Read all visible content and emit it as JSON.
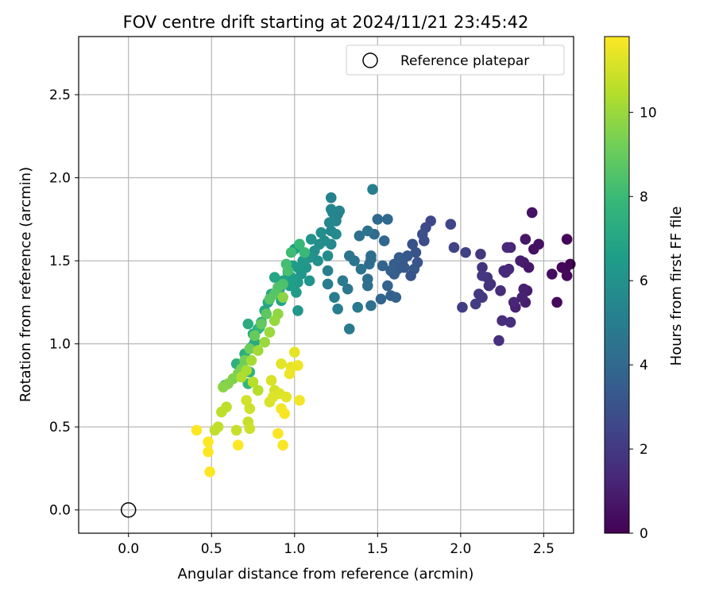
{
  "chart_data": {
    "type": "scatter",
    "title": "FOV centre drift starting at 2024/11/21 23:45:42",
    "xlabel": "Angular distance from reference (arcmin)",
    "ylabel": "Rotation from reference (arcmin)",
    "xlim": [
      -0.3,
      2.68
    ],
    "ylim": [
      -0.14,
      2.85
    ],
    "xticks": [
      "0.0",
      "0.5",
      "1.0",
      "1.5",
      "2.0",
      "2.5"
    ],
    "xtick_values": [
      0,
      0.5,
      1.0,
      1.5,
      2.0,
      2.5
    ],
    "yticks": [
      "0.0",
      "0.5",
      "1.0",
      "1.5",
      "2.0",
      "2.5"
    ],
    "ytick_values": [
      0,
      0.5,
      1.0,
      1.5,
      2.0,
      2.5
    ],
    "grid": true,
    "legend": {
      "placement": "top-right",
      "label": "Reference platepar"
    },
    "reference_point": {
      "x": 0,
      "y": 0,
      "marker": "open-circle",
      "color": "#000000"
    },
    "colorbar": {
      "label": "Hours from first FF file",
      "range": [
        0,
        11.8
      ],
      "ticks": [
        "0",
        "2",
        "4",
        "6",
        "8",
        "10"
      ],
      "tick_values": [
        0,
        2,
        4,
        6,
        8,
        10
      ],
      "colormap": "viridis",
      "stops": [
        "#440154",
        "#482878",
        "#3e4989",
        "#31688e",
        "#26828e",
        "#1f9e89",
        "#35b779",
        "#6ece58",
        "#b5de2b",
        "#fde725"
      ]
    },
    "series": [
      {
        "color_by": "hours",
        "points": [
          [
            2.64,
            1.63,
            0.1
          ],
          [
            2.66,
            1.48,
            0.1
          ],
          [
            2.63,
            1.45,
            0.2
          ],
          [
            2.61,
            1.46,
            0.2
          ],
          [
            2.64,
            1.41,
            0.2
          ],
          [
            2.58,
            1.25,
            0.3
          ],
          [
            2.55,
            1.42,
            0.4
          ],
          [
            2.47,
            1.6,
            0.5
          ],
          [
            2.44,
            1.57,
            0.5
          ],
          [
            2.43,
            1.79,
            0.6
          ],
          [
            2.39,
            1.63,
            0.7
          ],
          [
            2.41,
            1.46,
            0.7
          ],
          [
            2.38,
            1.49,
            0.8
          ],
          [
            2.36,
            1.5,
            0.9
          ],
          [
            2.4,
            1.32,
            0.9
          ],
          [
            2.38,
            1.33,
            1.0
          ],
          [
            2.39,
            1.25,
            1.0
          ],
          [
            2.37,
            1.28,
            1.1
          ],
          [
            2.33,
            1.22,
            1.1
          ],
          [
            2.32,
            1.25,
            1.2
          ],
          [
            2.3,
            1.58,
            1.2
          ],
          [
            2.28,
            1.58,
            1.3
          ],
          [
            2.29,
            1.45,
            1.3
          ],
          [
            2.27,
            1.43,
            1.4
          ],
          [
            2.26,
            1.44,
            1.4
          ],
          [
            2.24,
            1.32,
            1.5
          ],
          [
            2.25,
            1.14,
            1.5
          ],
          [
            2.23,
            1.02,
            1.6
          ],
          [
            2.3,
            1.13,
            1.6
          ],
          [
            2.18,
            1.36,
            1.7
          ],
          [
            2.17,
            1.35,
            1.7
          ],
          [
            2.16,
            1.4,
            1.8
          ],
          [
            2.13,
            1.46,
            1.8
          ],
          [
            2.12,
            1.54,
            1.9
          ],
          [
            2.13,
            1.41,
            1.9
          ],
          [
            2.11,
            1.3,
            2.0
          ],
          [
            2.13,
            1.28,
            2.0
          ],
          [
            2.09,
            1.24,
            2.1
          ],
          [
            2.01,
            1.22,
            2.2
          ],
          [
            2.03,
            1.55,
            2.3
          ],
          [
            1.96,
            1.58,
            2.4
          ],
          [
            1.94,
            1.72,
            2.5
          ],
          [
            1.82,
            1.74,
            2.6
          ],
          [
            1.79,
            1.7,
            2.7
          ],
          [
            1.78,
            1.62,
            2.8
          ],
          [
            1.77,
            1.66,
            2.9
          ],
          [
            1.73,
            1.55,
            3.0
          ],
          [
            1.71,
            1.6,
            3.0
          ],
          [
            1.74,
            1.49,
            3.1
          ],
          [
            1.7,
            1.41,
            3.1
          ],
          [
            1.72,
            1.45,
            3.2
          ],
          [
            1.68,
            1.53,
            3.2
          ],
          [
            1.65,
            1.5,
            3.3
          ],
          [
            1.66,
            1.46,
            3.3
          ],
          [
            1.62,
            1.45,
            3.4
          ],
          [
            1.63,
            1.52,
            3.4
          ],
          [
            1.6,
            1.42,
            3.5
          ],
          [
            1.6,
            1.48,
            3.5
          ],
          [
            1.58,
            1.44,
            3.6
          ],
          [
            1.58,
            1.29,
            3.6
          ],
          [
            1.61,
            1.28,
            3.7
          ],
          [
            1.56,
            1.35,
            3.7
          ],
          [
            1.52,
            1.27,
            3.8
          ],
          [
            1.53,
            1.47,
            3.8
          ],
          [
            1.54,
            1.62,
            3.9
          ],
          [
            1.56,
            1.75,
            4.0
          ],
          [
            1.5,
            1.75,
            4.0
          ],
          [
            1.48,
            1.66,
            4.1
          ],
          [
            1.46,
            1.51,
            4.1
          ],
          [
            1.45,
            1.48,
            4.2
          ],
          [
            1.46,
            1.53,
            4.2
          ],
          [
            1.44,
            1.39,
            4.3
          ],
          [
            1.44,
            1.35,
            4.3
          ],
          [
            1.46,
            1.23,
            4.4
          ],
          [
            1.39,
            1.65,
            4.4
          ],
          [
            1.44,
            1.68,
            4.5
          ],
          [
            1.4,
            1.45,
            4.5
          ],
          [
            1.36,
            1.5,
            4.6
          ],
          [
            1.33,
            1.53,
            4.6
          ],
          [
            1.32,
            1.33,
            4.7
          ],
          [
            1.33,
            1.09,
            4.8
          ],
          [
            1.38,
            1.22,
            4.8
          ],
          [
            1.29,
            1.38,
            4.9
          ],
          [
            1.24,
            1.28,
            4.9
          ],
          [
            1.26,
            1.21,
            5.0
          ],
          [
            1.2,
            1.36,
            5.0
          ],
          [
            1.2,
            1.44,
            5.1
          ],
          [
            1.47,
            1.93,
            5.1
          ],
          [
            1.26,
            1.78,
            5.2
          ],
          [
            1.22,
            1.88,
            5.2
          ],
          [
            1.23,
            1.79,
            5.3
          ],
          [
            1.27,
            1.8,
            5.3
          ],
          [
            1.22,
            1.81,
            5.4
          ],
          [
            1.25,
            1.74,
            5.4
          ],
          [
            1.21,
            1.73,
            5.5
          ],
          [
            1.22,
            1.68,
            5.5
          ],
          [
            1.25,
            1.66,
            5.6
          ],
          [
            1.22,
            1.6,
            5.6
          ],
          [
            1.2,
            1.53,
            5.7
          ],
          [
            1.18,
            1.62,
            5.7
          ],
          [
            1.16,
            1.67,
            5.8
          ],
          [
            1.15,
            1.6,
            5.8
          ],
          [
            1.14,
            1.5,
            5.9
          ],
          [
            1.12,
            1.56,
            5.9
          ],
          [
            1.1,
            1.63,
            6.0
          ],
          [
            1.09,
            1.52,
            6.0
          ],
          [
            1.09,
            1.38,
            6.1
          ],
          [
            1.07,
            1.46,
            6.1
          ],
          [
            1.02,
            1.2,
            6.2
          ],
          [
            1.04,
            1.42,
            6.2
          ],
          [
            1.05,
            1.5,
            6.3
          ],
          [
            1.02,
            1.46,
            6.3
          ],
          [
            1.02,
            1.37,
            6.4
          ],
          [
            1.01,
            1.31,
            6.4
          ],
          [
            1.0,
            1.57,
            6.5
          ],
          [
            0.99,
            1.47,
            6.5
          ],
          [
            0.98,
            1.4,
            6.6
          ],
          [
            0.97,
            1.35,
            6.6
          ],
          [
            0.96,
            1.43,
            6.7
          ],
          [
            0.93,
            1.38,
            6.7
          ],
          [
            0.91,
            1.33,
            6.8
          ],
          [
            0.92,
            1.26,
            6.8
          ],
          [
            0.88,
            1.4,
            6.9
          ],
          [
            0.86,
            1.3,
            6.9
          ],
          [
            0.84,
            1.25,
            7.0
          ],
          [
            0.82,
            1.2,
            7.0
          ],
          [
            0.8,
            1.13,
            7.1
          ],
          [
            0.78,
            1.09,
            7.1
          ],
          [
            0.76,
            1.01,
            7.2
          ],
          [
            0.74,
            0.98,
            7.2
          ],
          [
            0.75,
            1.06,
            7.3
          ],
          [
            0.72,
            1.12,
            7.3
          ],
          [
            0.7,
            0.94,
            7.4
          ],
          [
            0.65,
            0.88,
            7.5
          ],
          [
            0.58,
            0.75,
            7.6
          ],
          [
            0.73,
            0.83,
            7.7
          ],
          [
            0.72,
            0.76,
            7.8
          ],
          [
            0.79,
            1.1,
            7.8
          ],
          [
            1.03,
            1.6,
            7.9
          ],
          [
            1.06,
            1.55,
            8.0
          ],
          [
            0.98,
            1.55,
            8.1
          ],
          [
            0.95,
            1.48,
            8.2
          ],
          [
            0.96,
            1.44,
            8.3
          ],
          [
            0.93,
            1.36,
            8.4
          ],
          [
            0.9,
            1.34,
            8.5
          ],
          [
            0.88,
            1.3,
            8.6
          ],
          [
            0.85,
            1.27,
            8.7
          ],
          [
            0.83,
            1.18,
            8.8
          ],
          [
            0.8,
            1.12,
            8.9
          ],
          [
            0.76,
            1.05,
            9.0
          ],
          [
            0.73,
            0.97,
            9.1
          ],
          [
            0.7,
            0.9,
            9.2
          ],
          [
            0.68,
            0.85,
            9.3
          ],
          [
            0.66,
            0.82,
            9.4
          ],
          [
            0.63,
            0.79,
            9.5
          ],
          [
            0.6,
            0.76,
            9.6
          ],
          [
            0.57,
            0.74,
            9.7
          ],
          [
            0.93,
            1.28,
            9.7
          ],
          [
            0.9,
            1.18,
            9.8
          ],
          [
            0.88,
            1.14,
            9.9
          ],
          [
            0.85,
            1.07,
            10.0
          ],
          [
            0.82,
            1.01,
            10.0
          ],
          [
            0.78,
            0.96,
            10.1
          ],
          [
            0.74,
            0.9,
            10.2
          ],
          [
            0.71,
            0.84,
            10.3
          ],
          [
            0.68,
            0.8,
            10.4
          ],
          [
            0.75,
            0.77,
            10.5
          ],
          [
            0.78,
            0.72,
            10.5
          ],
          [
            0.59,
            0.62,
            10.6
          ],
          [
            0.56,
            0.59,
            10.6
          ],
          [
            0.52,
            0.48,
            10.7
          ],
          [
            0.54,
            0.5,
            10.7
          ],
          [
            0.65,
            0.48,
            10.8
          ],
          [
            0.72,
            0.53,
            10.8
          ],
          [
            0.73,
            0.49,
            10.9
          ],
          [
            0.73,
            0.61,
            10.9
          ],
          [
            0.71,
            0.66,
            11.0
          ],
          [
            0.88,
            0.72,
            11.0
          ],
          [
            0.86,
            0.78,
            11.1
          ],
          [
            0.85,
            0.65,
            11.1
          ],
          [
            0.87,
            0.68,
            11.2
          ],
          [
            0.91,
            0.7,
            11.2
          ],
          [
            0.95,
            0.68,
            11.3
          ],
          [
            0.92,
            0.88,
            11.3
          ],
          [
            0.98,
            0.86,
            11.4
          ],
          [
            1.0,
            0.95,
            11.4
          ],
          [
            0.97,
            0.82,
            11.5
          ],
          [
            1.02,
            0.87,
            11.5
          ],
          [
            1.03,
            0.66,
            11.6
          ],
          [
            0.92,
            0.61,
            11.6
          ],
          [
            0.94,
            0.58,
            11.7
          ],
          [
            0.9,
            0.46,
            11.7
          ],
          [
            0.93,
            0.39,
            11.7
          ],
          [
            0.66,
            0.39,
            11.8
          ],
          [
            0.48,
            0.41,
            11.8
          ],
          [
            0.48,
            0.35,
            11.8
          ],
          [
            0.49,
            0.23,
            11.8
          ],
          [
            0.41,
            0.48,
            11.8
          ]
        ]
      }
    ]
  }
}
